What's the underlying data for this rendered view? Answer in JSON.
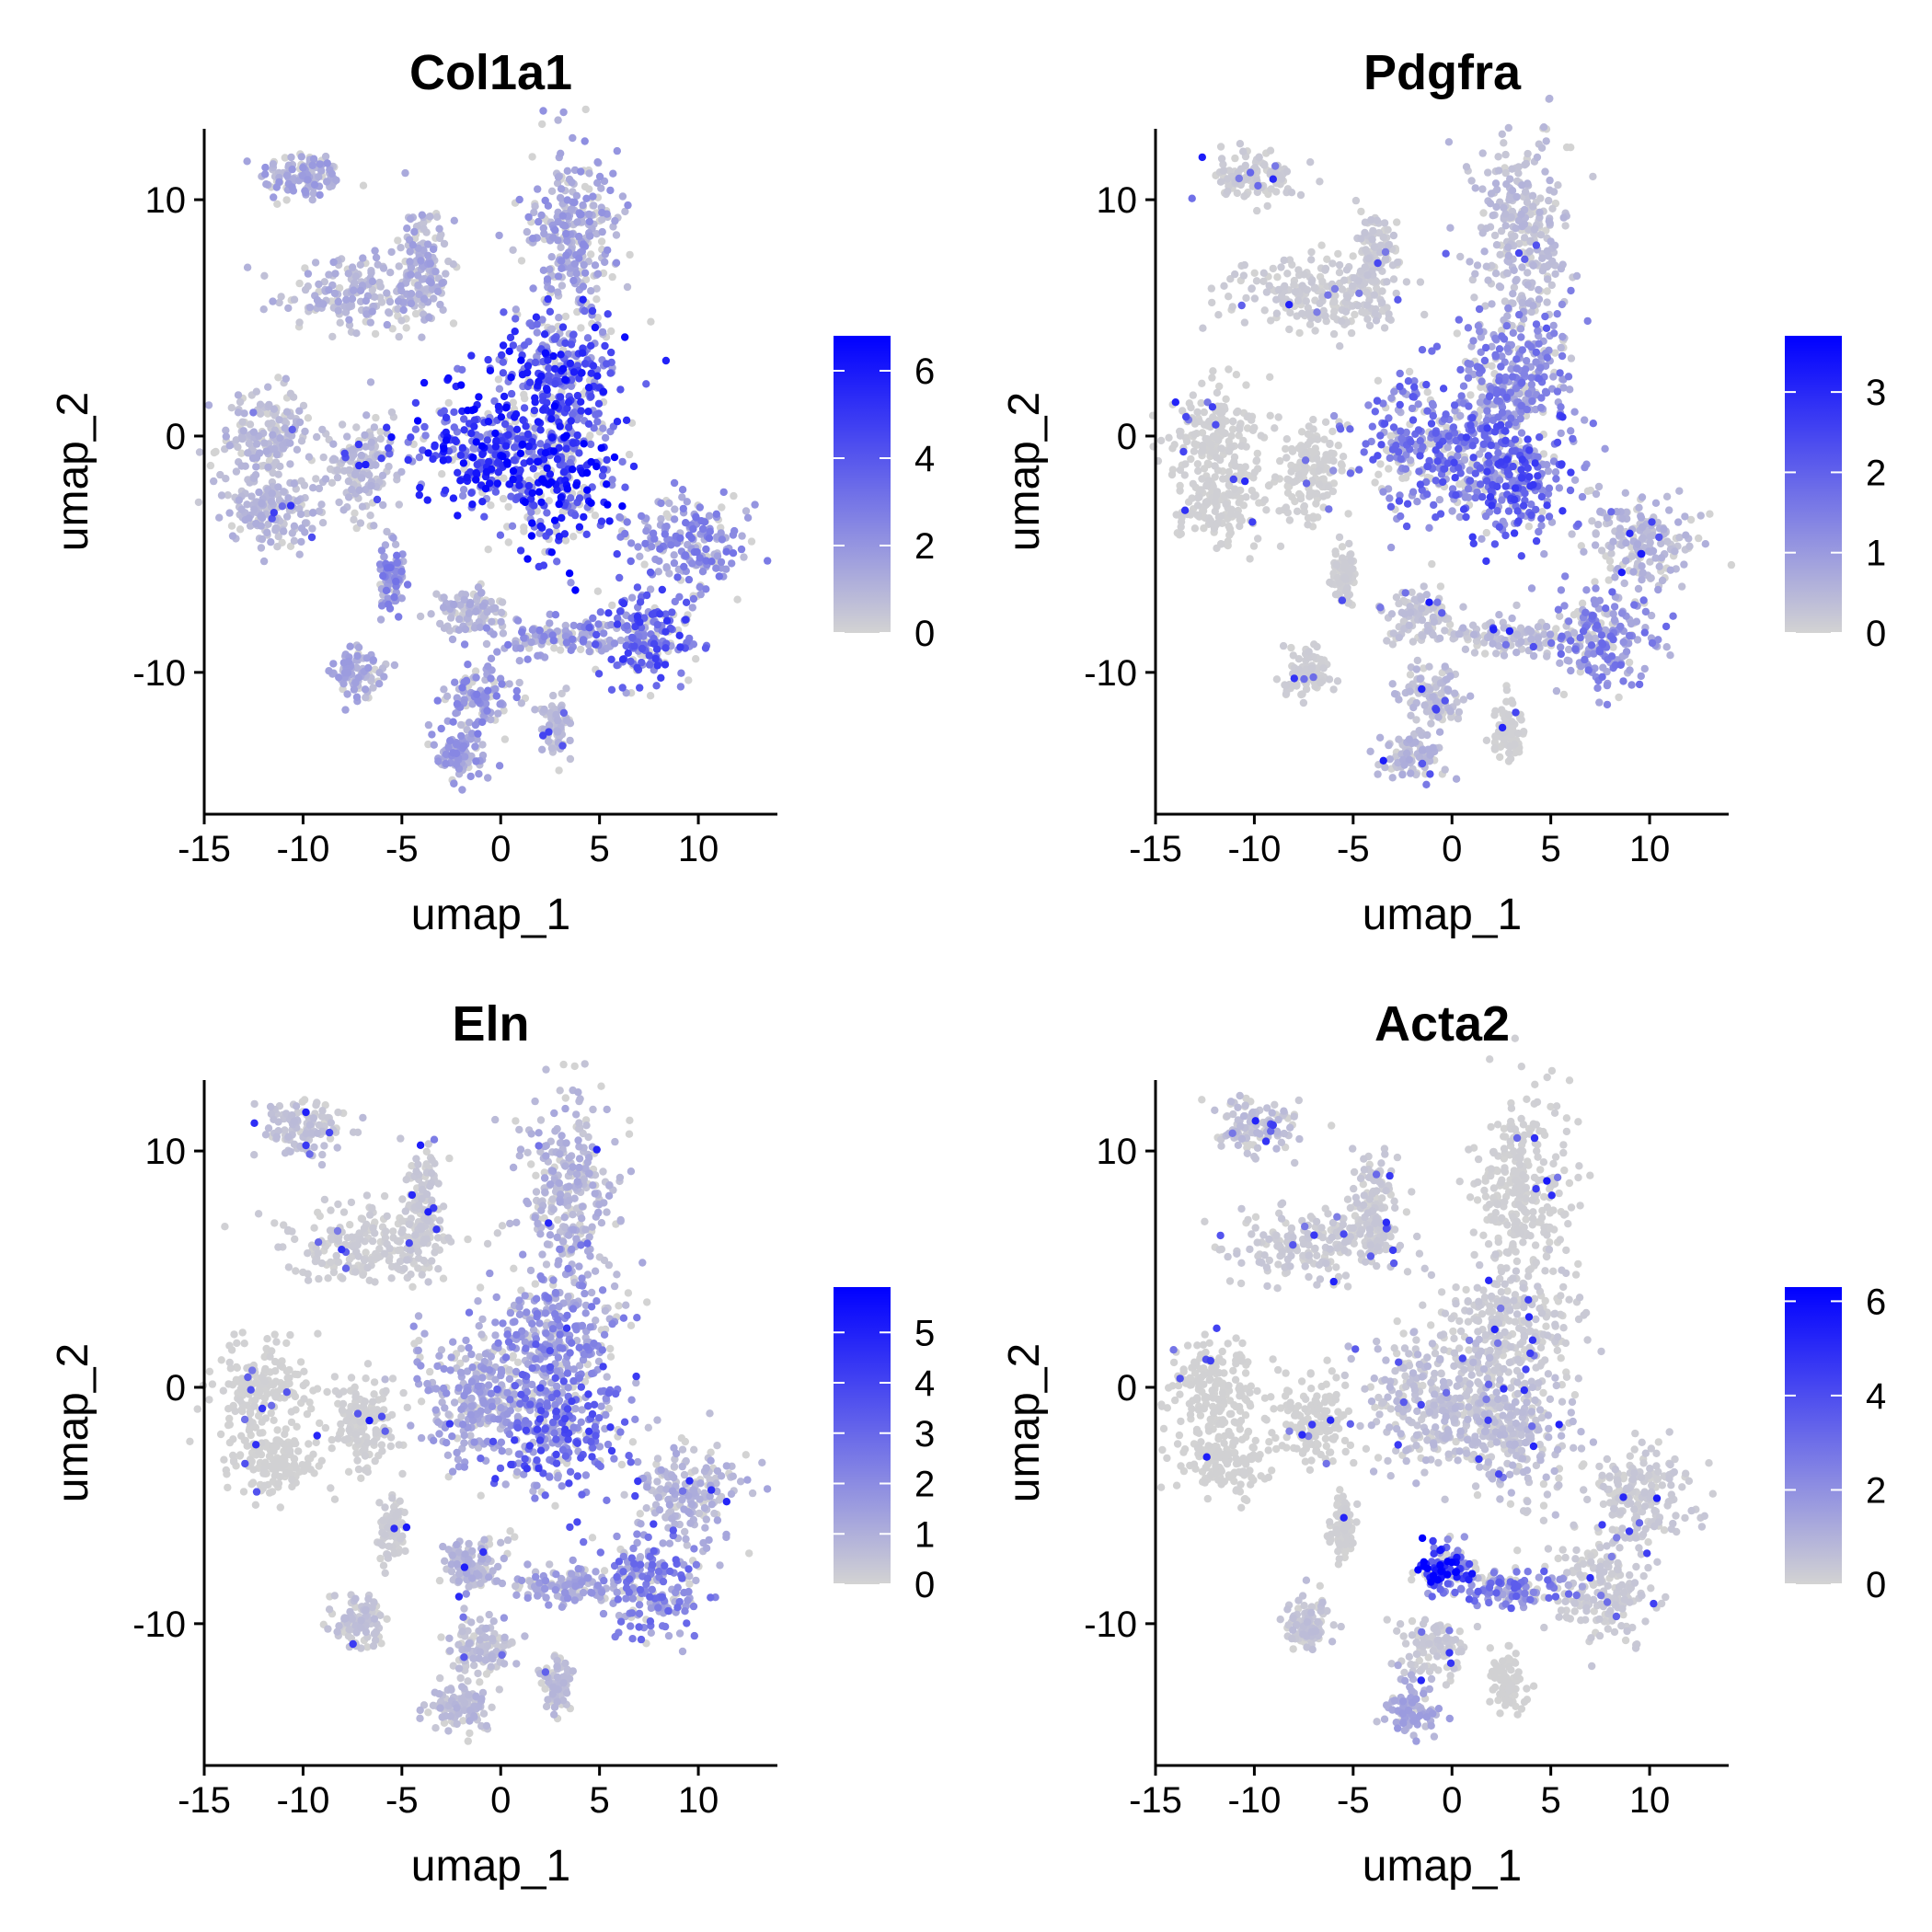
{
  "figure": {
    "panels": [
      {
        "title": "Col1a1",
        "legend_ticks": [
          "0",
          "2",
          "4",
          "6"
        ]
      },
      {
        "title": "Pdgfra",
        "legend_ticks": [
          "0",
          "1",
          "2",
          "3"
        ]
      },
      {
        "title": "Eln",
        "legend_ticks": [
          "0",
          "1",
          "2",
          "3",
          "4",
          "5"
        ]
      },
      {
        "title": "Acta2",
        "legend_ticks": [
          "0",
          "2",
          "4",
          "6"
        ]
      }
    ]
  },
  "colors": {
    "low": "#D3D3D3",
    "high": "#0000FF",
    "axis": "#000000"
  },
  "chart_data": [
    {
      "type": "scatter",
      "title": "Col1a1",
      "xlabel": "umap_1",
      "ylabel": "umap_2",
      "xlim": [
        -15,
        14
      ],
      "ylim": [
        -16,
        13
      ],
      "x_ticks": [
        -15,
        -10,
        -5,
        0,
        5,
        10
      ],
      "y_ticks": [
        -10,
        0,
        10
      ],
      "color_scale": {
        "min": 0,
        "max": 6.8,
        "ticks": [
          0,
          2,
          4,
          6
        ],
        "low": "#D3D3D3",
        "high": "#0000FF"
      },
      "grid": false,
      "legend": "right",
      "clusters": [
        {
          "cx": -10,
          "cy": 11,
          "rx": 2,
          "ry": 1,
          "expr": 1.4
        },
        {
          "cx": -6.8,
          "cy": 6,
          "rx": 3.8,
          "ry": 1.4,
          "expr": 1.1
        },
        {
          "cx": -4,
          "cy": 7.5,
          "rx": 1,
          "ry": 2.2,
          "expr": 1.3
        },
        {
          "cx": -12,
          "cy": 0,
          "rx": 2.2,
          "ry": 1.8,
          "expr": 0.9
        },
        {
          "cx": -11.5,
          "cy": -3,
          "rx": 2.2,
          "ry": 1.5,
          "expr": 0.9
        },
        {
          "cx": -7,
          "cy": -1.5,
          "rx": 1.6,
          "ry": 1.8,
          "expr": 0.8
        },
        {
          "cx": 3.5,
          "cy": 8.5,
          "rx": 2.2,
          "ry": 3.6,
          "expr": 1.6
        },
        {
          "cx": 3,
          "cy": 2.5,
          "rx": 3,
          "ry": 2.5,
          "expr": 4.5
        },
        {
          "cx": -0.8,
          "cy": -0.5,
          "rx": 3.5,
          "ry": 2.5,
          "expr": 4.8
        },
        {
          "cx": 3,
          "cy": -1.8,
          "rx": 3,
          "ry": 2.6,
          "expr": 5
        },
        {
          "cx": 9.5,
          "cy": -4.5,
          "rx": 2.5,
          "ry": 1.8,
          "expr": 2.2
        },
        {
          "cx": 7.5,
          "cy": -8.5,
          "rx": 2.4,
          "ry": 2,
          "expr": 3.6
        },
        {
          "cx": 3,
          "cy": -8.5,
          "rx": 3,
          "ry": 0.7,
          "expr": 2
        },
        {
          "cx": -5.5,
          "cy": -6,
          "rx": 0.6,
          "ry": 1.2,
          "expr": 2.2
        },
        {
          "cx": -7.2,
          "cy": -10,
          "rx": 1.2,
          "ry": 1,
          "expr": 1.3
        },
        {
          "cx": -1.5,
          "cy": -7.5,
          "rx": 1.5,
          "ry": 1,
          "expr": 1
        },
        {
          "cx": -1,
          "cy": -11,
          "rx": 1.5,
          "ry": 1.2,
          "expr": 2
        },
        {
          "cx": -2,
          "cy": -13.5,
          "rx": 1.4,
          "ry": 1,
          "expr": 1.7
        },
        {
          "cx": 2.8,
          "cy": -12.5,
          "rx": 0.7,
          "ry": 1.2,
          "expr": 0.8
        }
      ]
    },
    {
      "type": "scatter",
      "title": "Pdgfra",
      "xlabel": "umap_1",
      "ylabel": "umap_2",
      "xlim": [
        -15,
        14
      ],
      "ylim": [
        -16,
        13
      ],
      "x_ticks": [
        -15,
        -10,
        -5,
        0,
        5,
        10
      ],
      "y_ticks": [
        -10,
        0,
        10
      ],
      "color_scale": {
        "min": 0,
        "max": 3.7,
        "ticks": [
          0,
          1,
          2,
          3
        ],
        "low": "#D3D3D3",
        "high": "#0000FF"
      },
      "grid": false,
      "legend": "right",
      "clusters": [
        {
          "cx": -10,
          "cy": 11,
          "rx": 2,
          "ry": 1,
          "expr": 0.15
        },
        {
          "cx": -6.8,
          "cy": 6,
          "rx": 3.8,
          "ry": 1.4,
          "expr": 0.15
        },
        {
          "cx": -4,
          "cy": 7.5,
          "rx": 1,
          "ry": 2.2,
          "expr": 0.2
        },
        {
          "cx": -12,
          "cy": 0,
          "rx": 2.2,
          "ry": 1.8,
          "expr": 0.05
        },
        {
          "cx": -11.5,
          "cy": -3,
          "rx": 2.2,
          "ry": 1.5,
          "expr": 0.05
        },
        {
          "cx": -7,
          "cy": -1.5,
          "rx": 1.6,
          "ry": 1.8,
          "expr": 0.05
        },
        {
          "cx": 3.5,
          "cy": 8.5,
          "rx": 2.2,
          "ry": 3.6,
          "expr": 0.4
        },
        {
          "cx": 3,
          "cy": 2.5,
          "rx": 3,
          "ry": 2.5,
          "expr": 1.3
        },
        {
          "cx": -0.8,
          "cy": -0.5,
          "rx": 3.5,
          "ry": 2.5,
          "expr": 1.6
        },
        {
          "cx": 3,
          "cy": -1.8,
          "rx": 3,
          "ry": 2.6,
          "expr": 1.9
        },
        {
          "cx": 9.5,
          "cy": -4.5,
          "rx": 2.5,
          "ry": 1.8,
          "expr": 0.5
        },
        {
          "cx": 7.5,
          "cy": -8.5,
          "rx": 2.4,
          "ry": 2,
          "expr": 1.3
        },
        {
          "cx": 3,
          "cy": -8.5,
          "rx": 3,
          "ry": 0.7,
          "expr": 0.4
        },
        {
          "cx": -5.5,
          "cy": -6,
          "rx": 0.6,
          "ry": 1.2,
          "expr": 0.1
        },
        {
          "cx": -7.2,
          "cy": -10,
          "rx": 1.2,
          "ry": 1,
          "expr": 0.1
        },
        {
          "cx": -1.5,
          "cy": -7.5,
          "rx": 1.5,
          "ry": 1,
          "expr": 0.3
        },
        {
          "cx": -1,
          "cy": -11,
          "rx": 1.5,
          "ry": 1.2,
          "expr": 0.4
        },
        {
          "cx": -2,
          "cy": -13.5,
          "rx": 1.4,
          "ry": 1,
          "expr": 0.5
        },
        {
          "cx": 2.8,
          "cy": -12.5,
          "rx": 0.7,
          "ry": 1.2,
          "expr": 0.05
        }
      ]
    },
    {
      "type": "scatter",
      "title": "Eln",
      "xlabel": "umap_1",
      "ylabel": "umap_2",
      "xlim": [
        -15,
        14
      ],
      "ylim": [
        -16,
        13
      ],
      "x_ticks": [
        -15,
        -10,
        -5,
        0,
        5,
        10
      ],
      "y_ticks": [
        -10,
        0,
        10
      ],
      "color_scale": {
        "min": 0,
        "max": 5.9,
        "ticks": [
          0,
          1,
          2,
          3,
          4,
          5
        ],
        "low": "#D3D3D3",
        "high": "#0000FF"
      },
      "grid": false,
      "legend": "right",
      "clusters": [
        {
          "cx": -10,
          "cy": 11,
          "rx": 2,
          "ry": 1,
          "expr": 0.5
        },
        {
          "cx": -6.8,
          "cy": 6,
          "rx": 3.8,
          "ry": 1.4,
          "expr": 0.2
        },
        {
          "cx": -4,
          "cy": 7.5,
          "rx": 1,
          "ry": 2.2,
          "expr": 0.3
        },
        {
          "cx": -12,
          "cy": 0,
          "rx": 2.2,
          "ry": 1.8,
          "expr": 0.05
        },
        {
          "cx": -11.5,
          "cy": -3,
          "rx": 2.2,
          "ry": 1.5,
          "expr": 0.05
        },
        {
          "cx": -7,
          "cy": -1.5,
          "rx": 1.6,
          "ry": 1.8,
          "expr": 0.1
        },
        {
          "cx": 3.5,
          "cy": 8.5,
          "rx": 2.2,
          "ry": 3.6,
          "expr": 0.9
        },
        {
          "cx": 3,
          "cy": 2.5,
          "rx": 3,
          "ry": 2.5,
          "expr": 1.8
        },
        {
          "cx": -0.8,
          "cy": -0.5,
          "rx": 3.5,
          "ry": 2.5,
          "expr": 1.3
        },
        {
          "cx": 3,
          "cy": -1.8,
          "rx": 3,
          "ry": 2.6,
          "expr": 3
        },
        {
          "cx": 9.5,
          "cy": -4.5,
          "rx": 2.5,
          "ry": 1.8,
          "expr": 0.9
        },
        {
          "cx": 7.5,
          "cy": -8.5,
          "rx": 2.4,
          "ry": 2,
          "expr": 2.2
        },
        {
          "cx": 3,
          "cy": -8.5,
          "rx": 3,
          "ry": 0.7,
          "expr": 1.3
        },
        {
          "cx": -5.5,
          "cy": -6,
          "rx": 0.6,
          "ry": 1.2,
          "expr": 0.2
        },
        {
          "cx": -7.2,
          "cy": -10,
          "rx": 1.2,
          "ry": 1,
          "expr": 0.5
        },
        {
          "cx": -1.5,
          "cy": -7.5,
          "rx": 1.5,
          "ry": 1,
          "expr": 0.8
        },
        {
          "cx": -1,
          "cy": -11,
          "rx": 1.5,
          "ry": 1.2,
          "expr": 0.6
        },
        {
          "cx": -2,
          "cy": -13.5,
          "rx": 1.4,
          "ry": 1,
          "expr": 0.7
        },
        {
          "cx": 2.8,
          "cy": -12.5,
          "rx": 0.7,
          "ry": 1.2,
          "expr": 0.6
        }
      ]
    },
    {
      "type": "scatter",
      "title": "Acta2",
      "xlabel": "umap_1",
      "ylabel": "umap_2",
      "xlim": [
        -15,
        14
      ],
      "ylim": [
        -16,
        13
      ],
      "x_ticks": [
        -15,
        -10,
        -5,
        0,
        5,
        10
      ],
      "y_ticks": [
        -10,
        0,
        10
      ],
      "color_scale": {
        "min": 0,
        "max": 6.3,
        "ticks": [
          0,
          2,
          4,
          6
        ],
        "low": "#D3D3D3",
        "high": "#0000FF"
      },
      "grid": false,
      "legend": "right",
      "clusters": [
        {
          "cx": -10,
          "cy": 11,
          "rx": 2,
          "ry": 1,
          "expr": 0.6
        },
        {
          "cx": -6.8,
          "cy": 6,
          "rx": 3.8,
          "ry": 1.4,
          "expr": 0.3
        },
        {
          "cx": -4,
          "cy": 7.5,
          "rx": 1,
          "ry": 2.2,
          "expr": 0.3
        },
        {
          "cx": -12,
          "cy": 0,
          "rx": 2.2,
          "ry": 1.8,
          "expr": 0.05
        },
        {
          "cx": -11.5,
          "cy": -3,
          "rx": 2.2,
          "ry": 1.5,
          "expr": 0.05
        },
        {
          "cx": -7,
          "cy": -1.5,
          "rx": 1.6,
          "ry": 1.8,
          "expr": 0.05
        },
        {
          "cx": 3.5,
          "cy": 8.5,
          "rx": 2.2,
          "ry": 3.6,
          "expr": 0.1
        },
        {
          "cx": 3,
          "cy": 2.5,
          "rx": 3,
          "ry": 2.5,
          "expr": 0.3
        },
        {
          "cx": -0.8,
          "cy": -0.5,
          "rx": 3.5,
          "ry": 2.5,
          "expr": 0.6
        },
        {
          "cx": 3,
          "cy": -1.8,
          "rx": 3,
          "ry": 2.6,
          "expr": 0.6
        },
        {
          "cx": 9.5,
          "cy": -4.5,
          "rx": 2.5,
          "ry": 1.8,
          "expr": 0.3
        },
        {
          "cx": 7.5,
          "cy": -8.5,
          "rx": 2.4,
          "ry": 2,
          "expr": 0.3
        },
        {
          "cx": 3,
          "cy": -8.5,
          "rx": 3,
          "ry": 0.7,
          "expr": 2.5
        },
        {
          "cx": -5.5,
          "cy": -6,
          "rx": 0.6,
          "ry": 1.2,
          "expr": 0.1
        },
        {
          "cx": -7.2,
          "cy": -10,
          "rx": 1.2,
          "ry": 1,
          "expr": 0.5
        },
        {
          "cx": -0.3,
          "cy": -7.8,
          "rx": 1.3,
          "ry": 1,
          "expr": 5
        },
        {
          "cx": -1,
          "cy": -11,
          "rx": 1.5,
          "ry": 1.2,
          "expr": 0.3
        },
        {
          "cx": -2,
          "cy": -13.5,
          "rx": 1.4,
          "ry": 1,
          "expr": 1.2
        },
        {
          "cx": 2.8,
          "cy": -12.5,
          "rx": 0.7,
          "ry": 1.2,
          "expr": 0.05
        }
      ]
    }
  ]
}
